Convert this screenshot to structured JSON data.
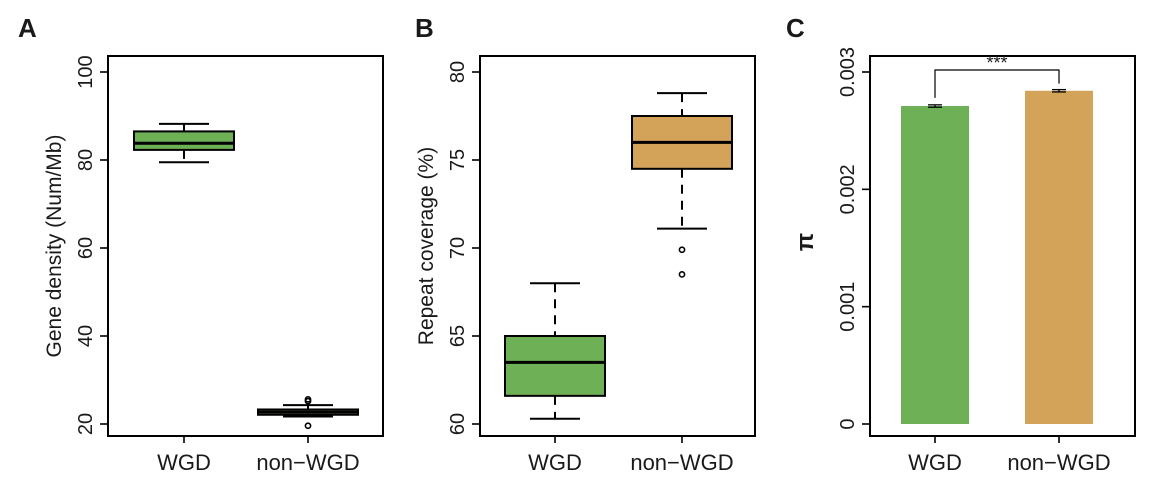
{
  "colors": {
    "wgd": "#6db056",
    "non_wgd": "#d4a35a",
    "stroke": "#000000"
  },
  "chart_data": [
    {
      "panel": "A",
      "type": "box",
      "categories": [
        "WGD",
        "non−WGD"
      ],
      "ylabel": "Gene density (Num/Mb)",
      "ylim": [
        20,
        100
      ],
      "yticks": [
        "20",
        "40",
        "60",
        "80",
        "100"
      ],
      "boxes": [
        {
          "category": "WGD",
          "min": 79.5,
          "q1": 82.3,
          "median": 83.8,
          "q3": 86.5,
          "max": 88.2,
          "outliers": []
        },
        {
          "category": "non−WGD",
          "min": 21.7,
          "q1": 22.1,
          "median": 22.7,
          "q3": 23.3,
          "max": 24.3,
          "outliers": [
            19.6,
            25.2,
            25.6
          ]
        }
      ]
    },
    {
      "panel": "B",
      "type": "box",
      "categories": [
        "WGD",
        "non−WGD"
      ],
      "ylabel": "Repeat coverage (%)",
      "ylim": [
        60,
        80
      ],
      "yticks": [
        "60",
        "65",
        "70",
        "75",
        "80"
      ],
      "boxes": [
        {
          "category": "WGD",
          "min": 60.3,
          "q1": 61.6,
          "median": 63.5,
          "q3": 65.0,
          "max": 68.0,
          "outliers": []
        },
        {
          "category": "non−WGD",
          "min": 71.1,
          "q1": 74.5,
          "median": 76.0,
          "q3": 77.5,
          "max": 78.8,
          "outliers": [
            69.9,
            68.5
          ]
        }
      ]
    },
    {
      "panel": "C",
      "type": "bar",
      "categories": [
        "WGD",
        "non−WGD"
      ],
      "ylabel": "π",
      "ylim": [
        0,
        0.003
      ],
      "yticks": [
        "0",
        "0.001",
        "0.002",
        "0.003"
      ],
      "values": [
        0.00271,
        0.00284
      ],
      "errors": [
        1e-05,
        1e-05
      ],
      "annotation": "***"
    }
  ]
}
